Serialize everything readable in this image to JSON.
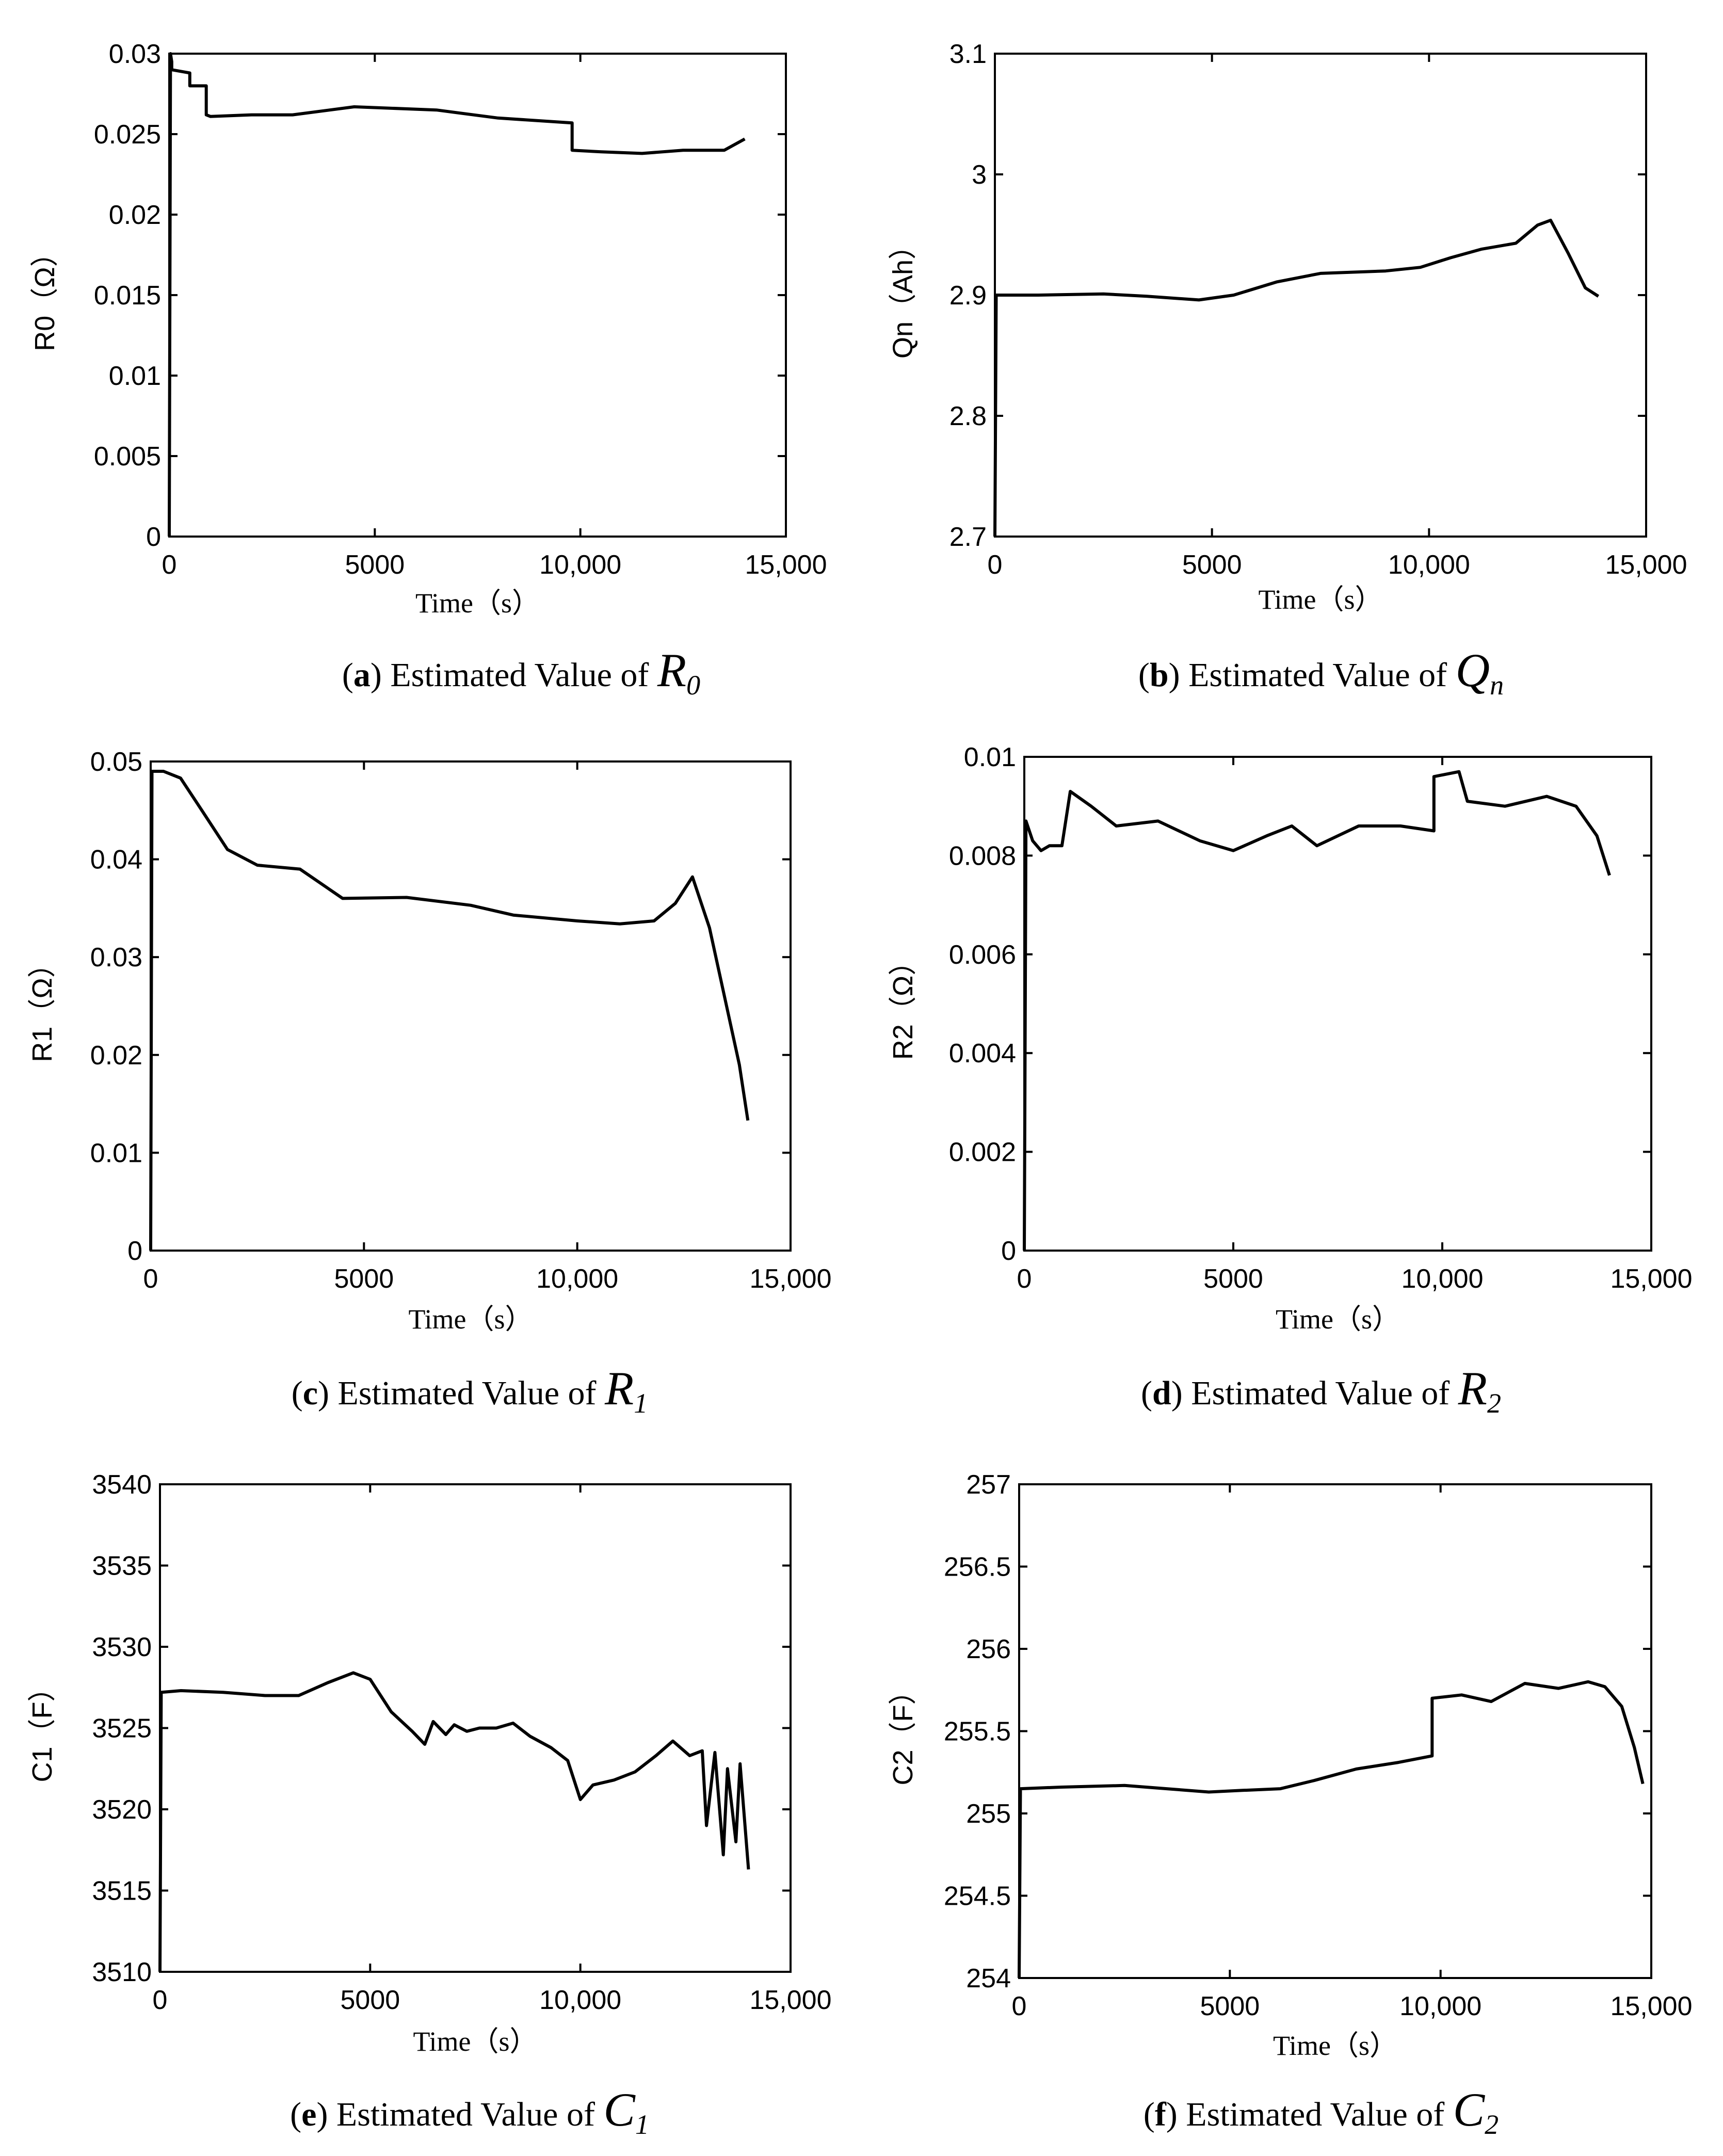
{
  "chart_data": [
    {
      "type": "line",
      "panel": "a",
      "caption_prefix": "Estimated Value of",
      "caption_symbol": "R",
      "caption_subscript": "0",
      "ylabel": "R0（Ω）",
      "xlabel": "Time（s）",
      "xlim": [
        0,
        15000
      ],
      "ylim": [
        0,
        0.03
      ],
      "xticks": [
        0,
        5000,
        10000,
        15000
      ],
      "xtick_labels": [
        "0",
        "5000",
        "10,000",
        "15,000"
      ],
      "yticks": [
        0,
        0.005,
        0.01,
        0.015,
        0.02,
        0.025,
        0.03
      ],
      "ytick_labels": [
        "0",
        "0.005",
        "0.01",
        "0.015",
        "0.02",
        "0.025",
        "0.03"
      ],
      "series": [
        {
          "name": "R0",
          "x": [
            0,
            30,
            60,
            60,
            500,
            500,
            900,
            900,
            1000,
            1000,
            2000,
            3000,
            4500,
            6500,
            8000,
            9800,
            9800,
            10500,
            11500,
            12500,
            13500,
            14000
          ],
          "y": [
            0,
            0.03,
            0.0295,
            0.029,
            0.0288,
            0.028,
            0.028,
            0.0262,
            0.0261,
            0.0261,
            0.0262,
            0.0262,
            0.0267,
            0.0265,
            0.026,
            0.0257,
            0.024,
            0.0239,
            0.0238,
            0.024,
            0.024,
            0.0247
          ]
        }
      ]
    },
    {
      "type": "line",
      "panel": "b",
      "caption_prefix": "Estimated Value of",
      "caption_symbol": "Q",
      "caption_subscript": "n",
      "ylabel": "Qn（Ah）",
      "xlabel": "Time（s）",
      "xlim": [
        0,
        15000
      ],
      "ylim": [
        2.7,
        3.1
      ],
      "xticks": [
        0,
        5000,
        10000,
        15000
      ],
      "xtick_labels": [
        "0",
        "5000",
        "10,000",
        "15,000"
      ],
      "yticks": [
        2.7,
        2.8,
        2.9,
        3.0,
        3.1
      ],
      "ytick_labels": [
        "2.7",
        "2.8",
        "2.9",
        "3",
        "3.1"
      ],
      "series": [
        {
          "name": "Qn",
          "x": [
            0,
            30,
            1000,
            2500,
            3500,
            4700,
            5500,
            6500,
            7500,
            9000,
            9800,
            10500,
            11200,
            12000,
            12500,
            12800,
            13200,
            13600,
            13900
          ],
          "y": [
            2.7,
            2.9,
            2.9,
            2.901,
            2.899,
            2.896,
            2.9,
            2.911,
            2.918,
            2.92,
            2.923,
            2.931,
            2.938,
            2.943,
            2.958,
            2.962,
            2.935,
            2.906,
            2.899
          ]
        }
      ]
    },
    {
      "type": "line",
      "panel": "c",
      "caption_prefix": "Estimated Value of",
      "caption_symbol": "R",
      "caption_subscript": "1",
      "ylabel": "R1（Ω）",
      "xlabel": "Time（s）",
      "xlim": [
        0,
        15000
      ],
      "ylim": [
        0,
        0.05
      ],
      "xticks": [
        0,
        5000,
        10000,
        15000
      ],
      "xtick_labels": [
        "0",
        "5000",
        "10,000",
        "15,000"
      ],
      "yticks": [
        0,
        0.01,
        0.02,
        0.03,
        0.04,
        0.05
      ],
      "ytick_labels": [
        "0",
        "0.01",
        "0.02",
        "0.03",
        "0.04",
        "0.05"
      ],
      "series": [
        {
          "name": "R1",
          "x": [
            0,
            30,
            300,
            700,
            1200,
            1800,
            2500,
            3500,
            4500,
            6000,
            7500,
            8500,
            10000,
            11000,
            11800,
            12300,
            12700,
            13100,
            13500,
            13800,
            14000
          ],
          "y": [
            0,
            0.049,
            0.049,
            0.0483,
            0.045,
            0.041,
            0.0394,
            0.039,
            0.036,
            0.0361,
            0.0353,
            0.0343,
            0.0337,
            0.0334,
            0.0337,
            0.0355,
            0.0382,
            0.033,
            0.025,
            0.019,
            0.0133
          ]
        }
      ]
    },
    {
      "type": "line",
      "panel": "d",
      "caption_prefix": "Estimated Value of",
      "caption_symbol": "R",
      "caption_subscript": "2",
      "ylabel": "R2（Ω）",
      "xlabel": "Time（s）",
      "xlim": [
        0,
        15000
      ],
      "ylim": [
        0,
        0.01
      ],
      "xticks": [
        0,
        5000,
        10000,
        15000
      ],
      "xtick_labels": [
        "0",
        "5000",
        "10,000",
        "15,000"
      ],
      "yticks": [
        0,
        0.002,
        0.004,
        0.006,
        0.008,
        0.01
      ],
      "ytick_labels": [
        "0",
        "0.002",
        "0.004",
        "0.006",
        "0.008",
        "0.01"
      ],
      "series": [
        {
          "name": "R2",
          "x": [
            0,
            40,
            200,
            400,
            600,
            900,
            1100,
            1600,
            2200,
            3200,
            4200,
            5000,
            5800,
            6400,
            7000,
            8000,
            9000,
            9800,
            9800,
            10400,
            10600,
            11500,
            12500,
            13200,
            13700,
            14000
          ],
          "y": [
            0,
            0.0087,
            0.0083,
            0.0081,
            0.0082,
            0.0082,
            0.0093,
            0.009,
            0.0086,
            0.0087,
            0.0083,
            0.0081,
            0.0084,
            0.0086,
            0.0082,
            0.0086,
            0.0086,
            0.0085,
            0.0096,
            0.0097,
            0.0091,
            0.009,
            0.0092,
            0.009,
            0.0084,
            0.0076
          ]
        }
      ]
    },
    {
      "type": "line",
      "panel": "e",
      "caption_prefix": "Estimated Value of",
      "caption_symbol": "C",
      "caption_subscript": "1",
      "ylabel": "C1（F）",
      "xlabel": "Time（s）",
      "xlim": [
        0,
        15000
      ],
      "ylim": [
        3510,
        3540
      ],
      "xticks": [
        0,
        5000,
        10000,
        15000
      ],
      "xtick_labels": [
        "0",
        "5000",
        "10,000",
        "15,000"
      ],
      "yticks": [
        3510,
        3515,
        3520,
        3525,
        3530,
        3535,
        3540
      ],
      "ytick_labels": [
        "3510",
        "3515",
        "3520",
        "3525",
        "3530",
        "3535",
        "3540"
      ],
      "series": [
        {
          "name": "C1",
          "x": [
            0,
            30,
            500,
            1500,
            2500,
            3300,
            4000,
            4600,
            5000,
            5500,
            6000,
            6300,
            6500,
            6800,
            7000,
            7300,
            7600,
            8000,
            8400,
            8800,
            9300,
            9700,
            10000,
            10300,
            10800,
            11300,
            11800,
            12200,
            12600,
            12900,
            13000,
            13200,
            13400,
            13500,
            13700,
            13800,
            14000
          ],
          "y": [
            3510,
            3527.2,
            3527.3,
            3527.2,
            3527,
            3527,
            3527.8,
            3528.4,
            3528,
            3526,
            3524.8,
            3524,
            3525.4,
            3524.6,
            3525.2,
            3524.8,
            3525,
            3525,
            3525.3,
            3524.5,
            3523.8,
            3523,
            3520.6,
            3521.5,
            3521.8,
            3522.3,
            3523.3,
            3524.2,
            3523.3,
            3523.6,
            3519,
            3523.5,
            3517.2,
            3522.5,
            3518,
            3522.8,
            3516.3
          ]
        }
      ]
    },
    {
      "type": "line",
      "panel": "f",
      "caption_prefix": "Estimated Value of",
      "caption_symbol": "C",
      "caption_subscript": "2",
      "ylabel": "C2（F）",
      "xlabel": "Time（s）",
      "xlim": [
        0,
        15000
      ],
      "ylim": [
        254,
        257
      ],
      "xticks": [
        0,
        5000,
        10000,
        15000
      ],
      "xtick_labels": [
        "0",
        "5000",
        "10,000",
        "15,000"
      ],
      "yticks": [
        254,
        254.5,
        255,
        255.5,
        256,
        256.5,
        257
      ],
      "ytick_labels": [
        "254",
        "254.5",
        "255",
        "255.5",
        "256",
        "256.5",
        "257"
      ],
      "series": [
        {
          "name": "C2",
          "x": [
            0,
            30,
            1000,
            2500,
            3500,
            4500,
            5300,
            6200,
            7000,
            8000,
            9000,
            9800,
            9800,
            10500,
            11200,
            12000,
            12800,
            13500,
            13900,
            14300,
            14600,
            14800
          ],
          "y": [
            254,
            255.15,
            255.16,
            255.17,
            255.15,
            255.13,
            255.14,
            255.15,
            255.2,
            255.27,
            255.31,
            255.35,
            255.7,
            255.72,
            255.68,
            255.79,
            255.76,
            255.8,
            255.77,
            255.65,
            255.4,
            255.18
          ]
        }
      ]
    }
  ]
}
